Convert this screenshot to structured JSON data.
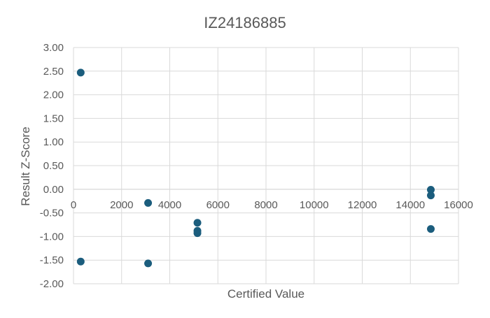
{
  "chart_data": {
    "type": "scatter",
    "title": "IZ24186885",
    "xlabel": "Certified Value",
    "ylabel": "Result Z-Score",
    "xlim": [
      0,
      16000
    ],
    "ylim": [
      -2.0,
      3.0
    ],
    "x_ticks": [
      "0",
      "2000",
      "4000",
      "6000",
      "8000",
      "10000",
      "12000",
      "14000",
      "16000"
    ],
    "y_ticks": [
      "-2.00",
      "-1.50",
      "-1.00",
      "-0.50",
      "0.00",
      "0.50",
      "1.00",
      "1.50",
      "2.00",
      "2.50",
      "3.00"
    ],
    "grid": true,
    "legend": "none",
    "marker_color": "#1b5d7d",
    "series": [
      {
        "points": [
          {
            "x": 300,
            "y": 2.47
          },
          {
            "x": 300,
            "y": -1.53
          },
          {
            "x": 3100,
            "y": -0.29
          },
          {
            "x": 3100,
            "y": -1.57
          },
          {
            "x": 5150,
            "y": -0.71
          },
          {
            "x": 5150,
            "y": -0.88
          },
          {
            "x": 5150,
            "y": -0.93
          },
          {
            "x": 14850,
            "y": -0.01
          },
          {
            "x": 14850,
            "y": -0.13
          },
          {
            "x": 14850,
            "y": -0.84
          }
        ]
      }
    ]
  }
}
